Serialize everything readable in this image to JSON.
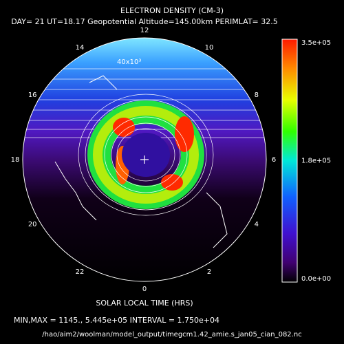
{
  "title": "ELECTRON DENSITY (CM-3)",
  "subtitle": "DAY= 21 UT=18.17 Geopotential Altitude=145.00km PERIMLAT= 32.5",
  "hour_labels": [
    "12",
    "14",
    "16",
    "18",
    "20",
    "22",
    "0",
    "2",
    "4",
    "6",
    "8",
    "10"
  ],
  "contour_label": "40x10³",
  "colorbar": {
    "labels": [
      "3.5e+05",
      "1.8e+05",
      "0.0e+00"
    ]
  },
  "x_label": "SOLAR LOCAL TIME (HRS)",
  "stats": "MIN,MAX =      1145., 5.445e+05 INTERVAL =  1.750e+04",
  "file": "/hao/aim2/woolman/model_output/timegcm1.42_amie.s_jan05_cian_082.nc"
}
